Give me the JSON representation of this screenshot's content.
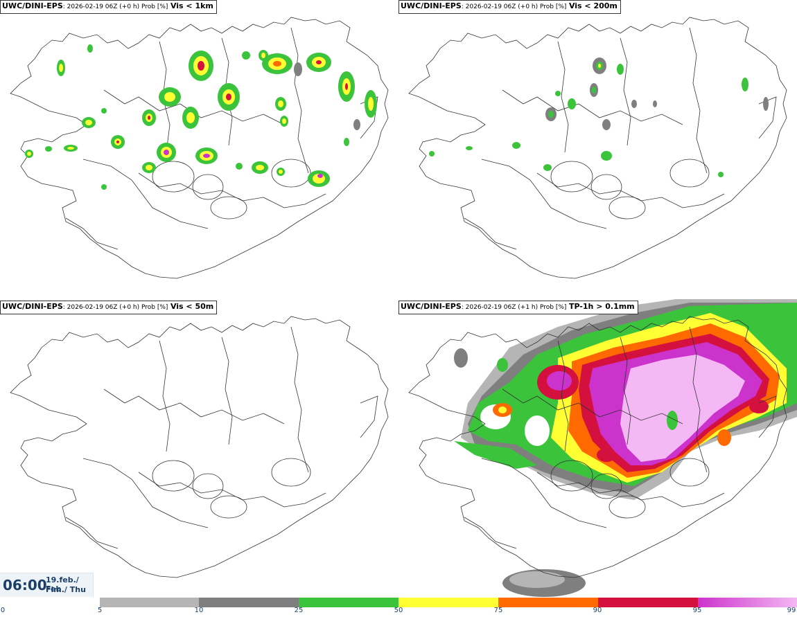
{
  "panels": [
    {
      "source": "UWC/DINI-EPS",
      "meta": ": 2026-02-19 06Z (+0 h) Prob [%]",
      "threshold": "Vis < 1km"
    },
    {
      "source": "UWC/DINI-EPS",
      "meta": ": 2026-02-19 06Z (+0 h) Prob [%]",
      "threshold": "Vis < 200m"
    },
    {
      "source": "UWC/DINI-EPS",
      "meta": ": 2026-02-19 06Z (+0 h) Prob [%]",
      "threshold": "Vis < 50m"
    },
    {
      "source": "UWC/DINI-EPS",
      "meta": ": 2026-02-19 06Z (+1 h) Prob [%]",
      "threshold": "TP-1h > 0.1mm"
    }
  ],
  "time": {
    "hour": "06:00",
    "date_line1": "19.feb./ Feb",
    "date_line2": "Fim./ Thu"
  },
  "legend": {
    "ticks": [
      "0",
      "5",
      "10",
      "25",
      "50",
      "75",
      "90",
      "95",
      "99"
    ],
    "colors": {
      "c5": "#b5b5b5",
      "c10": "#7f7f7f",
      "c25": "#3bc43b",
      "c50": "#ffff33",
      "c75": "#ff6a00",
      "c90": "#d4103e",
      "c95": "#cc33cc",
      "c99": "#f4b8f4"
    }
  }
}
